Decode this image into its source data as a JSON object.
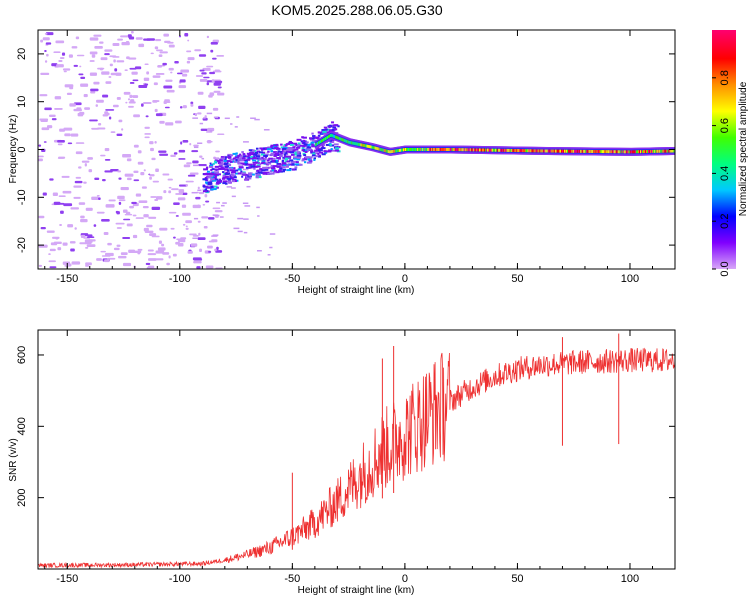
{
  "title": "KOM5.2025.288.06.05.G30",
  "chart_data": [
    {
      "type": "heatmap",
      "name": "spectrogram",
      "xlabel": "Height of straight line (km)",
      "ylabel": "Frequency (Hz)",
      "xlim": [
        -163,
        120
      ],
      "ylim": [
        -25,
        25
      ],
      "xticks": [
        -150,
        -100,
        -50,
        0,
        50,
        100
      ],
      "yticks": [
        20,
        10,
        0,
        -10,
        -20
      ],
      "colorbar": {
        "label": "Normalized spectral amplitude",
        "range": [
          0,
          1
        ],
        "ticks": [
          "0.0",
          "0.2",
          "0.4",
          "0.6",
          "0.8"
        ],
        "stops": [
          "#d8a8f8",
          "#8000ff",
          "#0000ff",
          "#00c8ff",
          "#00ff80",
          "#40ff00",
          "#ffff00",
          "#ff9000",
          "#ff0000",
          "#ff0070"
        ]
      },
      "ridge": [
        {
          "x": -90,
          "y": -6
        },
        {
          "x": -80,
          "y": -4
        },
        {
          "x": -70,
          "y": -3
        },
        {
          "x": -60,
          "y": -2
        },
        {
          "x": -50,
          "y": -1
        },
        {
          "x": -40,
          "y": 1
        },
        {
          "x": -33,
          "y": 3
        },
        {
          "x": -25,
          "y": 1.5
        },
        {
          "x": -15,
          "y": 0.5
        },
        {
          "x": -7,
          "y": -0.5
        },
        {
          "x": 0,
          "y": 0
        },
        {
          "x": 20,
          "y": 0
        },
        {
          "x": 60,
          "y": -0.3
        },
        {
          "x": 100,
          "y": -0.5
        },
        {
          "x": 120,
          "y": -0.3
        }
      ]
    },
    {
      "type": "line",
      "name": "snr",
      "xlabel": "Height of straight line (km)",
      "ylabel": "SNR (v/v)",
      "xlim": [
        -163,
        120
      ],
      "ylim": [
        0,
        670
      ],
      "xticks": [
        -150,
        -100,
        -50,
        0,
        50,
        100
      ],
      "yticks": [
        200,
        400,
        600
      ],
      "color": "#ee3030",
      "trend": [
        {
          "x": -163,
          "y": 10
        },
        {
          "x": -120,
          "y": 12
        },
        {
          "x": -90,
          "y": 15
        },
        {
          "x": -80,
          "y": 25
        },
        {
          "x": -70,
          "y": 40
        },
        {
          "x": -60,
          "y": 60
        },
        {
          "x": -50,
          "y": 90
        },
        {
          "x": -40,
          "y": 130
        },
        {
          "x": -30,
          "y": 190
        },
        {
          "x": -20,
          "y": 260
        },
        {
          "x": -10,
          "y": 330
        },
        {
          "x": 0,
          "y": 380
        },
        {
          "x": 10,
          "y": 430
        },
        {
          "x": 20,
          "y": 470
        },
        {
          "x": 30,
          "y": 510
        },
        {
          "x": 40,
          "y": 540
        },
        {
          "x": 50,
          "y": 560
        },
        {
          "x": 60,
          "y": 572
        },
        {
          "x": 80,
          "y": 580
        },
        {
          "x": 100,
          "y": 585
        },
        {
          "x": 120,
          "y": 585
        }
      ],
      "spikes": [
        {
          "x": -50,
          "y": 270
        },
        {
          "x": -10,
          "y": 590
        },
        {
          "x": -5,
          "y": 625
        },
        {
          "x": 70,
          "y": 650
        },
        {
          "x": 95,
          "y": 660
        }
      ]
    }
  ]
}
